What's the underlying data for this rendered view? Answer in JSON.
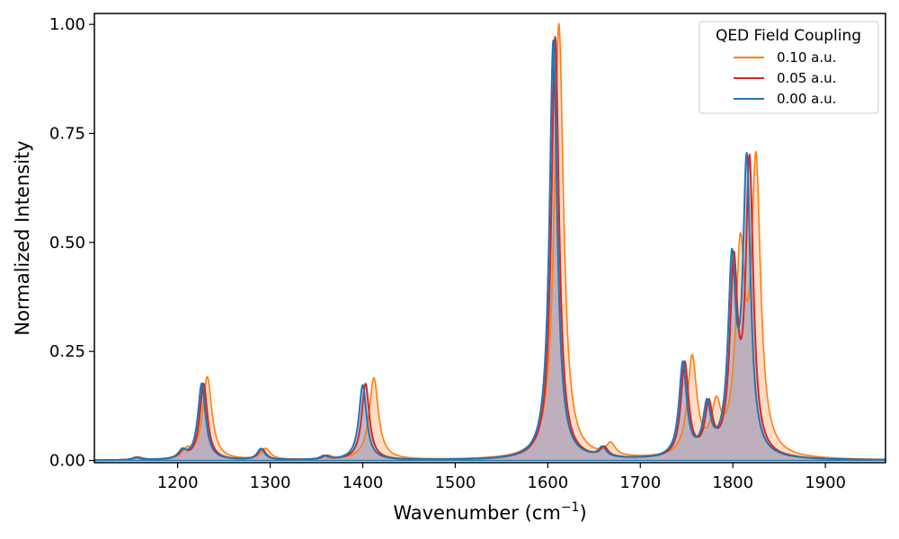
{
  "chart_data": {
    "type": "line",
    "xlabel": "Wavenumber (cm",
    "xlabel_sup": "−1",
    "xlabel_end": ")",
    "ylabel": "Normalized Intensity",
    "xlim": [
      1110,
      1965
    ],
    "ylim": [
      -0.005,
      1.025
    ],
    "xticks": [
      1200,
      1300,
      1400,
      1500,
      1600,
      1700,
      1800,
      1900
    ],
    "yticks": [
      0.0,
      0.25,
      0.5,
      0.75,
      1.0
    ],
    "ytick_labels": [
      "0.00",
      "0.25",
      "0.50",
      "0.75",
      "1.00"
    ],
    "grid": false,
    "filled": true,
    "legend": {
      "title": "QED Field Coupling",
      "placement": "top-right"
    },
    "series": [
      {
        "name": "0.10 a.u.",
        "color": "#ff7f0e",
        "fill_color": "#ffb380",
        "width_cm": 6,
        "peaks": [
          [
            1158,
            0.006
          ],
          [
            1210,
            0.018
          ],
          [
            1232,
            0.19
          ],
          [
            1295,
            0.025
          ],
          [
            1362,
            0.008
          ],
          [
            1412,
            0.188
          ],
          [
            1612,
            1.0
          ],
          [
            1668,
            0.028
          ],
          [
            1756,
            0.225
          ],
          [
            1782,
            0.1
          ],
          [
            1808,
            0.44
          ],
          [
            1825,
            0.655
          ]
        ]
      },
      {
        "name": "0.05 a.u.",
        "color": "#d62728",
        "fill_color": "#e08a8a",
        "width_cm": 5,
        "peaks": [
          [
            1156,
            0.006
          ],
          [
            1206,
            0.018
          ],
          [
            1228,
            0.175
          ],
          [
            1291,
            0.025
          ],
          [
            1360,
            0.008
          ],
          [
            1403,
            0.175
          ],
          [
            1608,
            0.97
          ],
          [
            1661,
            0.022
          ],
          [
            1748,
            0.215
          ],
          [
            1774,
            0.11
          ],
          [
            1801,
            0.42
          ],
          [
            1818,
            0.665
          ]
        ]
      },
      {
        "name": "0.00 a.u.",
        "color": "#1f77b4",
        "fill_color": "#7fa9d0",
        "width_cm": 5,
        "peaks": [
          [
            1155,
            0.006
          ],
          [
            1205,
            0.018
          ],
          [
            1226,
            0.175
          ],
          [
            1290,
            0.025
          ],
          [
            1358,
            0.008
          ],
          [
            1400,
            0.172
          ],
          [
            1606,
            0.962
          ],
          [
            1659,
            0.022
          ],
          [
            1746,
            0.215
          ],
          [
            1772,
            0.11
          ],
          [
            1799,
            0.42
          ],
          [
            1815,
            0.665
          ]
        ]
      }
    ]
  }
}
